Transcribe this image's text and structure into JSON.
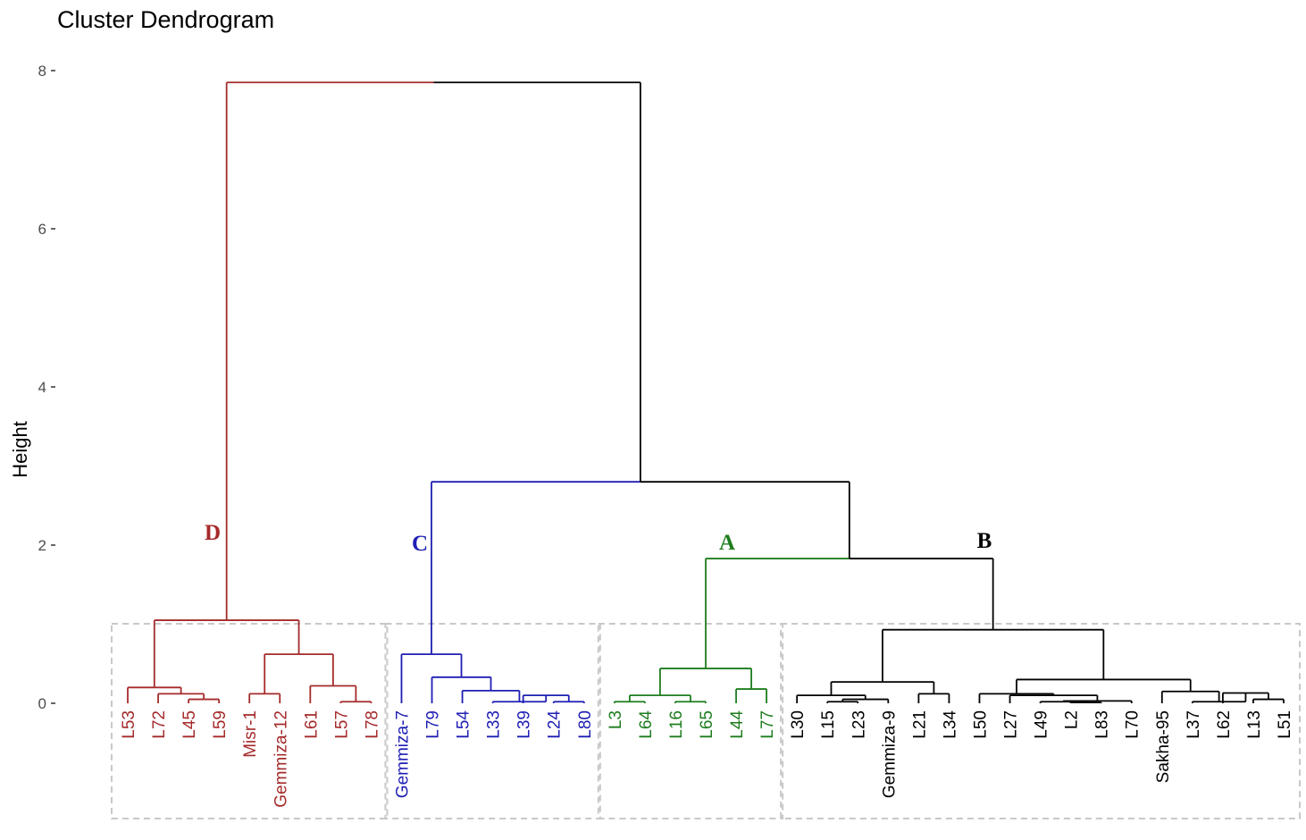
{
  "chart_data": {
    "type": "dendrogram",
    "title": "Cluster Dendrogram",
    "ylabel": "Height",
    "xlabel": "",
    "ylim": [
      0,
      8
    ],
    "yticks": [
      0,
      2,
      4,
      6,
      8
    ],
    "colors": {
      "D": "#a52a2a",
      "C": "#1e1eb4",
      "A": "#1e7d1e",
      "B": "#000000",
      "axis": "#333333",
      "box": "#c8c8c8"
    },
    "leaves": [
      {
        "label": "L53",
        "cluster": "D"
      },
      {
        "label": "L72",
        "cluster": "D"
      },
      {
        "label": "L45",
        "cluster": "D"
      },
      {
        "label": "L59",
        "cluster": "D"
      },
      {
        "label": "Misr-1",
        "cluster": "D"
      },
      {
        "label": "Gemmiza-12",
        "cluster": "D"
      },
      {
        "label": "L61",
        "cluster": "D"
      },
      {
        "label": "L57",
        "cluster": "D"
      },
      {
        "label": "L78",
        "cluster": "D"
      },
      {
        "label": "Gemmiza-7",
        "cluster": "C"
      },
      {
        "label": "L79",
        "cluster": "C"
      },
      {
        "label": "L54",
        "cluster": "C"
      },
      {
        "label": "L33",
        "cluster": "C"
      },
      {
        "label": "L39",
        "cluster": "C"
      },
      {
        "label": "L24",
        "cluster": "C"
      },
      {
        "label": "L80",
        "cluster": "C"
      },
      {
        "label": "L3",
        "cluster": "A"
      },
      {
        "label": "L64",
        "cluster": "A"
      },
      {
        "label": "L16",
        "cluster": "A"
      },
      {
        "label": "L65",
        "cluster": "A"
      },
      {
        "label": "L44",
        "cluster": "A"
      },
      {
        "label": "L77",
        "cluster": "A"
      },
      {
        "label": "L30",
        "cluster": "B"
      },
      {
        "label": "L15",
        "cluster": "B"
      },
      {
        "label": "L23",
        "cluster": "B"
      },
      {
        "label": "Gemmiza-9",
        "cluster": "B"
      },
      {
        "label": "L21",
        "cluster": "B"
      },
      {
        "label": "L34",
        "cluster": "B"
      },
      {
        "label": "L50",
        "cluster": "B"
      },
      {
        "label": "L27",
        "cluster": "B"
      },
      {
        "label": "L49",
        "cluster": "B"
      },
      {
        "label": "L2",
        "cluster": "B"
      },
      {
        "label": "L83",
        "cluster": "B"
      },
      {
        "label": "L70",
        "cluster": "B"
      },
      {
        "label": "Sakha-95",
        "cluster": "B"
      },
      {
        "label": "L37",
        "cluster": "B"
      },
      {
        "label": "L62",
        "cluster": "B"
      },
      {
        "label": "L13",
        "cluster": "B"
      },
      {
        "label": "L51",
        "cluster": "B"
      }
    ],
    "merges": [
      {
        "id": "m1",
        "left": 2,
        "right": 3,
        "height": 0.05,
        "color": "D"
      },
      {
        "id": "m2",
        "left": 1,
        "right": "m1",
        "height": 0.12,
        "color": "D"
      },
      {
        "id": "m3",
        "left": 0,
        "right": "m2",
        "height": 0.2,
        "color": "D"
      },
      {
        "id": "m4",
        "left": 4,
        "right": 5,
        "height": 0.12,
        "color": "D"
      },
      {
        "id": "m5",
        "left": 7,
        "right": 8,
        "height": 0.02,
        "color": "D"
      },
      {
        "id": "m6",
        "left": 6,
        "right": "m5",
        "height": 0.22,
        "color": "D"
      },
      {
        "id": "m7",
        "left": "m4",
        "right": "m6",
        "height": 0.62,
        "color": "D"
      },
      {
        "id": "m8",
        "left": "m3",
        "right": "m7",
        "height": 1.05,
        "color": "D"
      },
      {
        "id": "m9",
        "left": 14,
        "right": 15,
        "height": 0.02,
        "color": "C"
      },
      {
        "id": "m10",
        "left": 13,
        "right": "m9",
        "height": 0.1,
        "color": "C"
      },
      {
        "id": "m11",
        "left": 12,
        "right": "m10",
        "height": 0.02,
        "color": "C"
      },
      {
        "id": "m12",
        "left": 11,
        "right": "m11",
        "height": 0.16,
        "color": "C"
      },
      {
        "id": "m13",
        "left": 10,
        "right": "m12",
        "height": 0.33,
        "color": "C"
      },
      {
        "id": "m14",
        "left": 9,
        "right": "m13",
        "height": 0.62,
        "color": "C"
      },
      {
        "id": "m15",
        "left": 16,
        "right": 17,
        "height": 0.02,
        "color": "A"
      },
      {
        "id": "m16",
        "left": 18,
        "right": 19,
        "height": 0.02,
        "color": "A"
      },
      {
        "id": "m17",
        "left": "m15",
        "right": "m16",
        "height": 0.1,
        "color": "A"
      },
      {
        "id": "m18",
        "left": 20,
        "right": 21,
        "height": 0.18,
        "color": "A"
      },
      {
        "id": "m19",
        "left": "m17",
        "right": "m18",
        "height": 0.44,
        "color": "A"
      },
      {
        "id": "m20",
        "left": 23,
        "right": 24,
        "height": 0.02,
        "color": "B"
      },
      {
        "id": "m21",
        "left": "m20",
        "right": 25,
        "height": 0.05,
        "color": "B"
      },
      {
        "id": "m22",
        "left": 22,
        "right": "m21",
        "height": 0.1,
        "color": "B"
      },
      {
        "id": "m23",
        "left": 26,
        "right": 27,
        "height": 0.12,
        "color": "B"
      },
      {
        "id": "m24",
        "left": "m22",
        "right": "m23",
        "height": 0.27,
        "color": "B"
      },
      {
        "id": "m25",
        "left": 31,
        "right": 32,
        "height": 0.01,
        "color": "B"
      },
      {
        "id": "m26",
        "left": 30,
        "right": "m25",
        "height": 0.02,
        "color": "B"
      },
      {
        "id": "m27",
        "left": "m26",
        "right": 33,
        "height": 0.03,
        "color": "B"
      },
      {
        "id": "m28",
        "left": 29,
        "right": "m27",
        "height": 0.1,
        "color": "B"
      },
      {
        "id": "m29",
        "left": 28,
        "right": "m28",
        "height": 0.12,
        "color": "B"
      },
      {
        "id": "m30",
        "left": 37,
        "right": 38,
        "height": 0.05,
        "color": "B"
      },
      {
        "id": "m31",
        "left": 36,
        "right": "m30",
        "height": 0.13,
        "color": "B"
      },
      {
        "id": "m32",
        "left": 35,
        "right": "m31",
        "height": 0.02,
        "color": "B"
      },
      {
        "id": "m33",
        "left": 34,
        "right": "m32",
        "height": 0.15,
        "color": "B"
      },
      {
        "id": "m34",
        "left": "m29",
        "right": "m33",
        "height": 0.3,
        "color": "B"
      },
      {
        "id": "m35",
        "left": "m24",
        "right": "m34",
        "height": 0.93,
        "color": "B"
      },
      {
        "id": "m36",
        "left": "m19",
        "right": "m35",
        "height": 1.83,
        "color": "B",
        "left_color": "A"
      },
      {
        "id": "m37",
        "left": "m14",
        "right": "m36",
        "height": 2.8,
        "color": "B",
        "left_color": "C"
      },
      {
        "id": "m38",
        "left": "m8",
        "right": "m37",
        "height": 7.85,
        "color": "B",
        "left_color": "D"
      }
    ],
    "clusters": [
      {
        "label": "D",
        "first": 0,
        "last": 8
      },
      {
        "label": "C",
        "first": 9,
        "last": 15
      },
      {
        "label": "A",
        "first": 16,
        "last": 21
      },
      {
        "label": "B",
        "first": 22,
        "last": 38
      }
    ]
  }
}
